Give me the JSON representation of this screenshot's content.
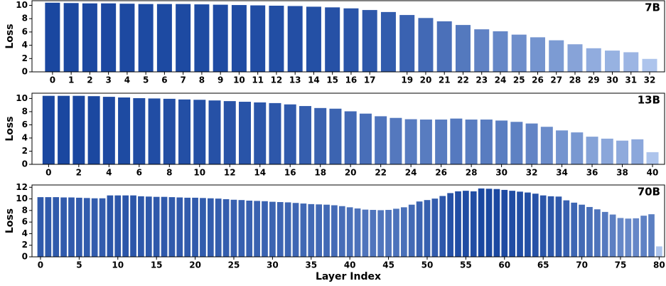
{
  "chart_data": [
    {
      "type": "bar",
      "annotation": "7B",
      "ylabel": "Loss",
      "x": [
        0,
        1,
        2,
        3,
        4,
        5,
        6,
        7,
        8,
        9,
        10,
        11,
        12,
        13,
        14,
        15,
        16,
        17,
        18,
        19,
        20,
        21,
        22,
        23,
        24,
        25,
        26,
        27,
        28,
        29,
        30,
        31,
        32
      ],
      "values": [
        10.4,
        10.35,
        10.3,
        10.3,
        10.25,
        10.2,
        10.2,
        10.2,
        10.15,
        10.1,
        10.05,
        10.0,
        9.95,
        9.9,
        9.8,
        9.7,
        9.55,
        9.3,
        9.0,
        8.55,
        8.1,
        7.6,
        7.05,
        6.4,
        6.1,
        5.6,
        5.2,
        4.75,
        4.15,
        3.55,
        3.2,
        2.95,
        1.95
      ],
      "color_range": [
        "#adc4ec",
        "#1a47a0"
      ],
      "xlim": [
        -1.1,
        32.8
      ],
      "xticks": [
        0,
        1,
        2,
        3,
        4,
        5,
        6,
        7,
        8,
        9,
        10,
        11,
        12,
        13,
        14,
        15,
        16,
        17,
        19,
        20,
        21,
        22,
        23,
        24,
        25,
        26,
        27,
        28,
        29,
        30,
        31,
        32
      ],
      "ylim": [
        0,
        10.7
      ],
      "yticks": [
        0,
        2,
        4,
        6,
        8,
        10
      ]
    },
    {
      "type": "bar",
      "annotation": "13B",
      "ylabel": "Loss",
      "x": [
        0,
        1,
        2,
        3,
        4,
        5,
        6,
        7,
        8,
        9,
        10,
        11,
        12,
        13,
        14,
        15,
        16,
        17,
        18,
        19,
        20,
        21,
        22,
        23,
        24,
        25,
        26,
        27,
        28,
        29,
        30,
        31,
        32,
        33,
        34,
        35,
        36,
        37,
        38,
        39,
        40
      ],
      "values": [
        10.4,
        10.4,
        10.4,
        10.35,
        10.25,
        10.15,
        10.05,
        10.0,
        9.95,
        9.85,
        9.8,
        9.7,
        9.6,
        9.5,
        9.4,
        9.3,
        9.1,
        8.85,
        8.55,
        8.45,
        8.05,
        7.7,
        7.3,
        7.05,
        6.85,
        6.8,
        6.8,
        6.95,
        6.8,
        6.8,
        6.65,
        6.45,
        6.2,
        5.7,
        5.15,
        4.85,
        4.2,
        3.9,
        3.6,
        3.8,
        1.85
      ],
      "color_range": [
        "#adc4ec",
        "#1a47a0"
      ],
      "xlim": [
        -1.1,
        40.8
      ],
      "xticks": [
        0,
        2,
        4,
        6,
        8,
        10,
        12,
        14,
        16,
        18,
        20,
        22,
        24,
        26,
        28,
        30,
        32,
        34,
        36,
        38,
        40
      ],
      "ylim": [
        0,
        10.8
      ],
      "yticks": [
        0,
        2,
        4,
        6,
        8,
        10
      ]
    },
    {
      "type": "bar",
      "annotation": "70B",
      "ylabel": "Loss",
      "xlabel": "Layer Index",
      "x": [
        0,
        1,
        2,
        3,
        4,
        5,
        6,
        7,
        8,
        9,
        10,
        11,
        12,
        13,
        14,
        15,
        16,
        17,
        18,
        19,
        20,
        21,
        22,
        23,
        24,
        25,
        26,
        27,
        28,
        29,
        30,
        31,
        32,
        33,
        34,
        35,
        36,
        37,
        38,
        39,
        40,
        41,
        42,
        43,
        44,
        45,
        46,
        47,
        48,
        49,
        50,
        51,
        52,
        53,
        54,
        55,
        56,
        57,
        58,
        59,
        60,
        61,
        62,
        63,
        64,
        65,
        66,
        67,
        68,
        69,
        70,
        71,
        72,
        73,
        74,
        75,
        76,
        77,
        78,
        79,
        80
      ],
      "values": [
        10.3,
        10.3,
        10.3,
        10.25,
        10.25,
        10.2,
        10.15,
        10.1,
        10.1,
        10.6,
        10.6,
        10.6,
        10.6,
        10.45,
        10.4,
        10.35,
        10.35,
        10.3,
        10.25,
        10.2,
        10.2,
        10.15,
        10.1,
        10.05,
        9.95,
        9.85,
        9.8,
        9.7,
        9.65,
        9.6,
        9.5,
        9.45,
        9.4,
        9.3,
        9.2,
        9.1,
        9.05,
        9.0,
        8.9,
        8.75,
        8.55,
        8.35,
        8.15,
        8.1,
        8.05,
        8.1,
        8.3,
        8.55,
        9.0,
        9.55,
        9.8,
        10.05,
        10.5,
        11.0,
        11.3,
        11.4,
        11.3,
        11.8,
        11.75,
        11.7,
        11.55,
        11.4,
        11.25,
        11.1,
        10.9,
        10.6,
        10.45,
        10.4,
        9.75,
        9.35,
        9.0,
        8.6,
        8.2,
        7.75,
        7.3,
        6.7,
        6.6,
        6.65,
        7.1,
        7.35,
        1.8
      ],
      "color_range": [
        "#adc4ec",
        "#1a47a0"
      ],
      "xlim": [
        -1.1,
        80.7
      ],
      "xticks": [
        0,
        5,
        10,
        15,
        20,
        25,
        30,
        35,
        40,
        45,
        50,
        55,
        60,
        65,
        70,
        75,
        80
      ],
      "ylim": [
        0,
        12.4
      ],
      "yticks": [
        0,
        2,
        4,
        6,
        8,
        10,
        12
      ]
    }
  ]
}
